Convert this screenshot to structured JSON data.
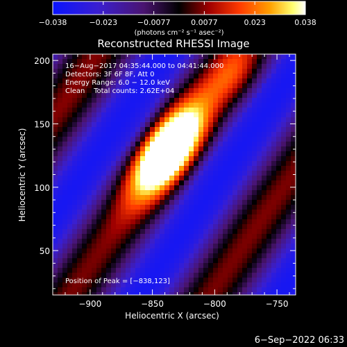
{
  "colorbar": {
    "ticks": [
      "-0.038",
      "-0.023",
      "-0.0077",
      "0.0077",
      "0.023",
      "0.038"
    ],
    "unit_label": "(photons cm⁻² s⁻¹ asec⁻²)",
    "range": [
      -0.038,
      0.038
    ]
  },
  "chart_data": {
    "type": "heatmap",
    "title": "Reconstructed RHESSI Image",
    "xlabel": "Heliocentric X (arcsec)",
    "ylabel": "Heliocentric Y (arcsec)",
    "xlim": [
      -930,
      -735
    ],
    "ylim": [
      15,
      205
    ],
    "x_ticks": [
      "−900",
      "−850",
      "−800",
      "−750"
    ],
    "x_tick_values": [
      -900,
      -850,
      -800,
      -750
    ],
    "y_ticks": [
      "50",
      "100",
      "150",
      "200"
    ],
    "y_tick_values": [
      50,
      100,
      150,
      200
    ],
    "annotation_lines": [
      "16−Aug−2017 04:35:44.000 to 04:41:44.000",
      "Detectors: 3F 6F 8F, Att 0",
      "Energy Range: 6.0 − 12.0 keV",
      "Clean    Total counts: 2.62E+04"
    ],
    "peak_label": "Position of Peak = [−838,123]",
    "peak": [
      -838,
      123
    ],
    "colormap": "rainbow-like (blue-purple-black-red-orange-yellow-white)"
  },
  "footer": {
    "date": "6−Sep−2022 06:33"
  }
}
